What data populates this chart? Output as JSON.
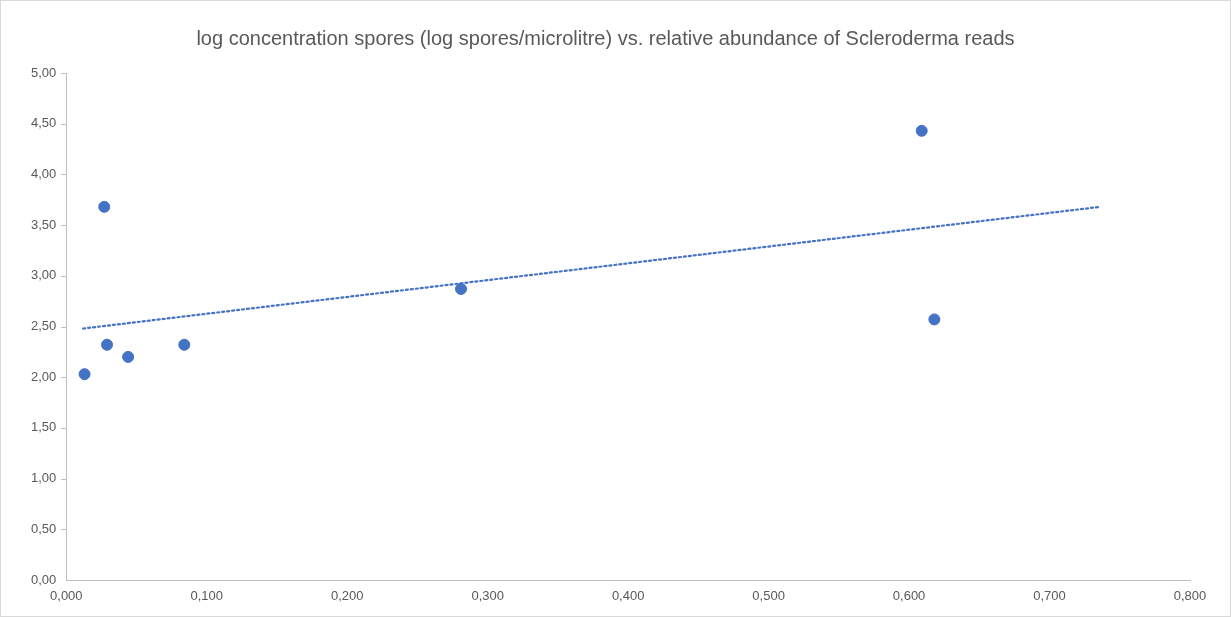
{
  "chart_data": {
    "type": "scatter",
    "title": "log concentration spores (log spores/microlitre) vs. relative abundance of Scleroderma reads",
    "x": [
      0.013,
      0.027,
      0.029,
      0.044,
      0.084,
      0.281,
      0.609,
      0.618
    ],
    "series": [
      {
        "color": "#4472c4",
        "marker": "circle",
        "values": [
          2.03,
          3.68,
          2.32,
          2.2,
          2.32,
          2.87,
          4.43,
          2.57
        ]
      },
      {
        "type": "line",
        "x": [
          0.012,
          0.736
        ],
        "values": [
          2.48,
          3.68
        ],
        "color": "#4472c4",
        "line_style": "dotted",
        "marker": "none"
      }
    ],
    "xlim": [
      0,
      0.8
    ],
    "xticks": [
      {
        "value": 0,
        "label": "0,000"
      },
      {
        "value": 0.1,
        "label": "0,100"
      },
      {
        "value": 0.2,
        "label": "0,200"
      },
      {
        "value": 0.3,
        "label": "0,300"
      },
      {
        "value": 0.4,
        "label": "0,400"
      },
      {
        "value": 0.5,
        "label": "0,500"
      },
      {
        "value": 0.6,
        "label": "0,600"
      },
      {
        "value": 0.7,
        "label": "0,700"
      },
      {
        "value": 0.8,
        "label": "0,800"
      }
    ],
    "ylim": [
      0,
      5
    ],
    "yticks": [
      {
        "value": 0,
        "label": "0,00"
      },
      {
        "value": 0.5,
        "label": "0,50"
      },
      {
        "value": 1,
        "label": "1,00"
      },
      {
        "value": 1.5,
        "label": "1,50"
      },
      {
        "value": 2,
        "label": "2,00"
      },
      {
        "value": 2.5,
        "label": "2,50"
      },
      {
        "value": 3,
        "label": "3,00"
      },
      {
        "value": 3.5,
        "label": "3,50"
      },
      {
        "value": 4,
        "label": "4,00"
      },
      {
        "value": 4.5,
        "label": "4,50"
      },
      {
        "value": 5,
        "label": "5,00"
      }
    ],
    "grid": false,
    "legend": false
  }
}
